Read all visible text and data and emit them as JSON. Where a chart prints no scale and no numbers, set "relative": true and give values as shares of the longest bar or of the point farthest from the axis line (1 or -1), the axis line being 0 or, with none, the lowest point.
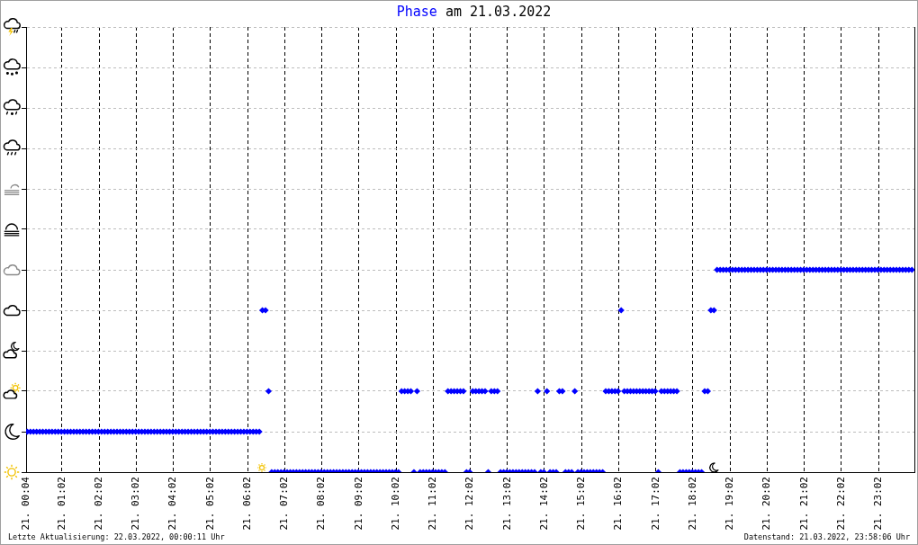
{
  "chart_data": {
    "type": "scatter",
    "title": "Phase am 21.03.2022",
    "annotations": [
      "Letzte Aktualisierung: 22.03.2022, 00:00:11 Uhr",
      "Datenstand: 21.03.2022, 23:58:06 Uhr"
    ],
    "x": [
      "2022-03-21T00:06",
      "2022-03-21T00:11",
      "2022-03-21T00:16",
      "2022-03-21T00:21",
      "2022-03-21T00:26",
      "2022-03-21T00:31",
      "2022-03-21T00:36",
      "2022-03-21T00:41",
      "2022-03-21T00:46",
      "2022-03-21T00:51",
      "2022-03-21T00:56",
      "2022-03-21T01:01",
      "2022-03-21T01:06",
      "2022-03-21T01:11",
      "2022-03-21T01:16",
      "2022-03-21T01:21",
      "2022-03-21T01:26",
      "2022-03-21T01:31",
      "2022-03-21T01:36",
      "2022-03-21T01:41",
      "2022-03-21T01:46",
      "2022-03-21T01:51",
      "2022-03-21T01:56",
      "2022-03-21T02:01",
      "2022-03-21T02:06",
      "2022-03-21T02:11",
      "2022-03-21T02:16",
      "2022-03-21T02:21",
      "2022-03-21T02:26",
      "2022-03-21T02:31",
      "2022-03-21T02:36",
      "2022-03-21T02:41",
      "2022-03-21T02:46",
      "2022-03-21T02:51",
      "2022-03-21T02:56",
      "2022-03-21T03:01",
      "2022-03-21T03:06",
      "2022-03-21T03:11",
      "2022-03-21T03:16",
      "2022-03-21T03:21",
      "2022-03-21T03:26",
      "2022-03-21T03:31",
      "2022-03-21T03:36",
      "2022-03-21T03:41",
      "2022-03-21T03:46",
      "2022-03-21T03:51",
      "2022-03-21T03:56",
      "2022-03-21T04:01",
      "2022-03-21T04:06",
      "2022-03-21T04:11",
      "2022-03-21T04:16",
      "2022-03-21T04:21",
      "2022-03-21T04:26",
      "2022-03-21T04:31",
      "2022-03-21T04:36",
      "2022-03-21T04:41",
      "2022-03-21T04:46",
      "2022-03-21T04:51",
      "2022-03-21T04:56",
      "2022-03-21T05:01",
      "2022-03-21T05:06",
      "2022-03-21T05:11",
      "2022-03-21T05:16",
      "2022-03-21T05:21",
      "2022-03-21T05:26",
      "2022-03-21T05:31",
      "2022-03-21T05:36",
      "2022-03-21T05:41",
      "2022-03-21T05:46",
      "2022-03-21T05:51",
      "2022-03-21T05:56",
      "2022-03-21T06:01",
      "2022-03-21T06:06",
      "2022-03-21T06:11",
      "2022-03-21T06:16",
      "2022-03-21T06:21",
      "2022-03-21T06:26",
      "2022-03-21T06:31",
      "2022-03-21T06:36",
      "2022-03-21T06:41",
      "2022-03-21T06:46",
      "2022-03-21T06:51",
      "2022-03-21T06:56",
      "2022-03-21T07:01",
      "2022-03-21T07:06",
      "2022-03-21T07:11",
      "2022-03-21T07:16",
      "2022-03-21T07:21",
      "2022-03-21T07:26",
      "2022-03-21T07:31",
      "2022-03-21T07:36",
      "2022-03-21T07:41",
      "2022-03-21T07:46",
      "2022-03-21T07:51",
      "2022-03-21T07:56",
      "2022-03-21T08:01",
      "2022-03-21T08:06",
      "2022-03-21T08:11",
      "2022-03-21T08:16",
      "2022-03-21T08:21",
      "2022-03-21T08:26",
      "2022-03-21T08:31",
      "2022-03-21T08:36",
      "2022-03-21T08:41",
      "2022-03-21T08:46",
      "2022-03-21T08:51",
      "2022-03-21T08:56",
      "2022-03-21T09:01",
      "2022-03-21T09:06",
      "2022-03-21T09:11",
      "2022-03-21T09:16",
      "2022-03-21T09:21",
      "2022-03-21T09:26",
      "2022-03-21T09:31",
      "2022-03-21T09:36",
      "2022-03-21T09:41",
      "2022-03-21T09:46",
      "2022-03-21T09:51",
      "2022-03-21T09:56",
      "2022-03-21T10:01",
      "2022-03-21T10:06",
      "2022-03-21T10:11",
      "2022-03-21T10:16",
      "2022-03-21T10:21",
      "2022-03-21T10:26",
      "2022-03-21T10:31",
      "2022-03-21T10:36",
      "2022-03-21T10:41",
      "2022-03-21T10:46",
      "2022-03-21T10:51",
      "2022-03-21T10:56",
      "2022-03-21T11:01",
      "2022-03-21T11:06",
      "2022-03-21T11:11",
      "2022-03-21T11:16",
      "2022-03-21T11:21",
      "2022-03-21T11:26",
      "2022-03-21T11:31",
      "2022-03-21T11:36",
      "2022-03-21T11:41",
      "2022-03-21T11:46",
      "2022-03-21T11:51",
      "2022-03-21T11:56",
      "2022-03-21T12:01",
      "2022-03-21T12:06",
      "2022-03-21T12:11",
      "2022-03-21T12:16",
      "2022-03-21T12:21",
      "2022-03-21T12:26",
      "2022-03-21T12:31",
      "2022-03-21T12:36",
      "2022-03-21T12:41",
      "2022-03-21T12:46",
      "2022-03-21T12:51",
      "2022-03-21T12:56",
      "2022-03-21T13:01",
      "2022-03-21T13:06",
      "2022-03-21T13:11",
      "2022-03-21T13:16",
      "2022-03-21T13:21",
      "2022-03-21T13:26",
      "2022-03-21T13:31",
      "2022-03-21T13:36",
      "2022-03-21T13:41",
      "2022-03-21T13:46",
      "2022-03-21T13:51",
      "2022-03-21T13:56",
      "2022-03-21T14:01",
      "2022-03-21T14:06",
      "2022-03-21T14:11",
      "2022-03-21T14:16",
      "2022-03-21T14:21",
      "2022-03-21T14:26",
      "2022-03-21T14:31",
      "2022-03-21T14:36",
      "2022-03-21T14:41",
      "2022-03-21T14:46",
      "2022-03-21T14:51",
      "2022-03-21T14:56",
      "2022-03-21T15:01",
      "2022-03-21T15:06",
      "2022-03-21T15:11",
      "2022-03-21T15:16",
      "2022-03-21T15:21",
      "2022-03-21T15:26",
      "2022-03-21T15:31",
      "2022-03-21T15:36",
      "2022-03-21T15:41",
      "2022-03-21T15:46",
      "2022-03-21T15:51",
      "2022-03-21T15:56",
      "2022-03-21T16:01",
      "2022-03-21T16:06",
      "2022-03-21T16:11",
      "2022-03-21T16:16",
      "2022-03-21T16:21",
      "2022-03-21T16:26",
      "2022-03-21T16:31",
      "2022-03-21T16:36",
      "2022-03-21T16:41",
      "2022-03-21T16:46",
      "2022-03-21T16:51",
      "2022-03-21T16:56",
      "2022-03-21T17:01",
      "2022-03-21T17:06",
      "2022-03-21T17:11",
      "2022-03-21T17:16",
      "2022-03-21T17:21",
      "2022-03-21T17:26",
      "2022-03-21T17:31",
      "2022-03-21T17:36",
      "2022-03-21T17:41",
      "2022-03-21T17:46",
      "2022-03-21T17:51",
      "2022-03-21T17:56",
      "2022-03-21T18:01",
      "2022-03-21T18:06",
      "2022-03-21T18:11",
      "2022-03-21T18:16",
      "2022-03-21T18:21",
      "2022-03-21T18:26",
      "2022-03-21T18:31",
      "2022-03-21T18:36",
      "2022-03-21T18:41",
      "2022-03-21T18:46",
      "2022-03-21T18:51",
      "2022-03-21T18:56",
      "2022-03-21T19:01",
      "2022-03-21T19:06",
      "2022-03-21T19:11",
      "2022-03-21T19:16",
      "2022-03-21T19:21",
      "2022-03-21T19:26",
      "2022-03-21T19:31",
      "2022-03-21T19:36",
      "2022-03-21T19:41",
      "2022-03-21T19:46",
      "2022-03-21T19:51",
      "2022-03-21T19:56",
      "2022-03-21T20:01",
      "2022-03-21T20:06",
      "2022-03-21T20:11",
      "2022-03-21T20:16",
      "2022-03-21T20:21",
      "2022-03-21T20:26",
      "2022-03-21T20:31",
      "2022-03-21T20:36",
      "2022-03-21T20:41",
      "2022-03-21T20:46",
      "2022-03-21T20:51",
      "2022-03-21T20:56",
      "2022-03-21T21:01",
      "2022-03-21T21:06",
      "2022-03-21T21:11",
      "2022-03-21T21:16",
      "2022-03-21T21:21",
      "2022-03-21T21:26",
      "2022-03-21T21:31",
      "2022-03-21T21:36",
      "2022-03-21T21:41",
      "2022-03-21T21:46",
      "2022-03-21T21:51",
      "2022-03-21T21:56",
      "2022-03-21T22:01",
      "2022-03-21T22:06",
      "2022-03-21T22:11",
      "2022-03-21T22:16",
      "2022-03-21T22:21",
      "2022-03-21T22:26",
      "2022-03-21T22:31",
      "2022-03-21T22:36",
      "2022-03-21T22:41",
      "2022-03-21T22:46",
      "2022-03-21T22:51",
      "2022-03-21T22:56",
      "2022-03-21T23:01",
      "2022-03-21T23:06",
      "2022-03-21T23:11",
      "2022-03-21T23:16",
      "2022-03-21T23:21",
      "2022-03-21T23:26",
      "2022-03-21T23:31",
      "2022-03-21T23:36",
      "2022-03-21T23:41",
      "2022-03-21T23:46",
      "2022-03-21T23:51",
      "2022-03-21T23:56"
    ],
    "values": [
      0.2,
      0.2,
      0.2,
      0.2,
      0.2,
      0.2,
      0.2,
      0.2,
      0.2,
      0.2,
      0.2,
      0.2,
      0.2,
      0.2,
      0.2,
      0.2,
      0.2,
      0.2,
      0.2,
      0.2,
      0.2,
      0.2,
      0.2,
      0.2,
      0.2,
      0.2,
      0.2,
      0.2,
      0.2,
      0.2,
      0.2,
      0.2,
      0.2,
      0.2,
      0.2,
      0.2,
      0.2,
      0.2,
      0.2,
      0.2,
      0.2,
      0.2,
      0.2,
      0.2,
      0.2,
      0.2,
      0.2,
      0.2,
      0.2,
      0.2,
      0.2,
      0.2,
      0.2,
      0.2,
      0.2,
      0.2,
      0.2,
      0.2,
      0.2,
      0.2,
      0.2,
      0.2,
      0.2,
      0.2,
      0.2,
      0.2,
      0.2,
      0.2,
      0.2,
      0.2,
      0.2,
      0.2,
      0.2,
      0.2,
      0.2,
      0.2,
      0.8,
      0.8,
      0.4,
      0,
      0,
      0,
      0,
      0,
      0,
      0,
      0,
      0,
      0,
      0,
      0,
      0,
      0,
      0,
      0,
      0,
      0,
      0,
      0,
      0,
      0,
      0,
      0,
      0,
      0,
      0,
      0,
      0,
      0,
      0,
      0,
      0,
      0,
      0,
      0,
      0,
      0,
      0,
      0,
      0,
      0,
      0.4,
      0.4,
      0.4,
      0.4,
      0,
      0.4,
      0,
      0,
      0,
      0,
      0,
      0,
      0,
      0,
      0,
      0.4,
      0.4,
      0.4,
      0.4,
      0.4,
      0.4,
      0,
      0,
      0.4,
      0.4,
      0.4,
      0.4,
      0.4,
      0,
      0.4,
      0.4,
      0.4,
      0,
      0,
      0,
      0,
      0,
      0,
      0,
      0,
      0,
      0,
      0,
      0,
      0.4,
      0,
      0,
      0.4,
      0,
      0,
      0,
      0.4,
      0.4,
      0,
      0,
      0,
      0.4,
      0,
      0,
      0,
      0,
      0,
      0,
      0,
      0,
      0,
      0.4,
      0.4,
      0.4,
      0.4,
      0.4,
      0.8,
      0.4,
      0.4,
      0.4,
      0.4,
      0.4,
      0.4,
      0.4,
      0.4,
      0.4,
      0.4,
      0.4,
      0,
      0.4,
      0.4,
      0.4,
      0.4,
      0.4,
      0.4,
      0,
      0,
      0,
      0,
      0,
      0,
      0,
      0,
      0.4,
      0.4,
      0.8,
      0.8,
      1,
      1,
      1,
      1,
      1,
      1,
      1,
      1,
      1,
      1,
      1,
      1,
      1,
      1,
      1,
      1,
      1,
      1,
      1,
      1,
      1,
      1,
      1,
      1,
      1,
      1,
      1,
      1,
      1,
      1,
      1,
      1,
      1,
      1,
      1,
      1,
      1,
      1,
      1,
      1,
      1,
      1,
      1,
      1,
      1,
      1,
      1,
      1,
      1,
      1,
      1,
      1,
      1,
      1,
      1,
      1,
      1,
      1,
      1,
      1,
      1,
      1,
      1,
      1
    ],
    "relative": true,
    "color": "#0000ff",
    "marker": "diamond",
    "xlim": [
      "2022-03-21T00:04",
      "2022-03-22T00:00"
    ],
    "xticks": [
      {
        "value": "2022-03-21T00:04",
        "label": "21. 00:04"
      },
      {
        "value": "2022-03-21T01:02",
        "label": "21. 01:02"
      },
      {
        "value": "2022-03-21T02:02",
        "label": "21. 02:02"
      },
      {
        "value": "2022-03-21T03:02",
        "label": "21. 03:02"
      },
      {
        "value": "2022-03-21T04:02",
        "label": "21. 04:02"
      },
      {
        "value": "2022-03-21T05:02",
        "label": "21. 05:02"
      },
      {
        "value": "2022-03-21T06:02",
        "label": "21. 06:02"
      },
      {
        "value": "2022-03-21T07:02",
        "label": "21. 07:02"
      },
      {
        "value": "2022-03-21T08:02",
        "label": "21. 08:02"
      },
      {
        "value": "2022-03-21T09:02",
        "label": "21. 09:02"
      },
      {
        "value": "2022-03-21T10:02",
        "label": "21. 10:02"
      },
      {
        "value": "2022-03-21T11:02",
        "label": "21. 11:02"
      },
      {
        "value": "2022-03-21T12:02",
        "label": "21. 12:02"
      },
      {
        "value": "2022-03-21T13:02",
        "label": "21. 13:02"
      },
      {
        "value": "2022-03-21T14:02",
        "label": "21. 14:02"
      },
      {
        "value": "2022-03-21T15:02",
        "label": "21. 15:02"
      },
      {
        "value": "2022-03-21T16:02",
        "label": "21. 16:02"
      },
      {
        "value": "2022-03-21T17:02",
        "label": "21. 17:02"
      },
      {
        "value": "2022-03-21T18:02",
        "label": "21. 18:02"
      },
      {
        "value": "2022-03-21T19:02",
        "label": "21. 19:02"
      },
      {
        "value": "2022-03-21T20:02",
        "label": "21. 20:02"
      },
      {
        "value": "2022-03-21T21:02",
        "label": "21. 21:02"
      },
      {
        "value": "2022-03-21T22:02",
        "label": "21. 22:02"
      },
      {
        "value": "2022-03-21T23:02",
        "label": "21. 23:02"
      }
    ],
    "grid": true,
    "tick_labels": "x"
  }
}
